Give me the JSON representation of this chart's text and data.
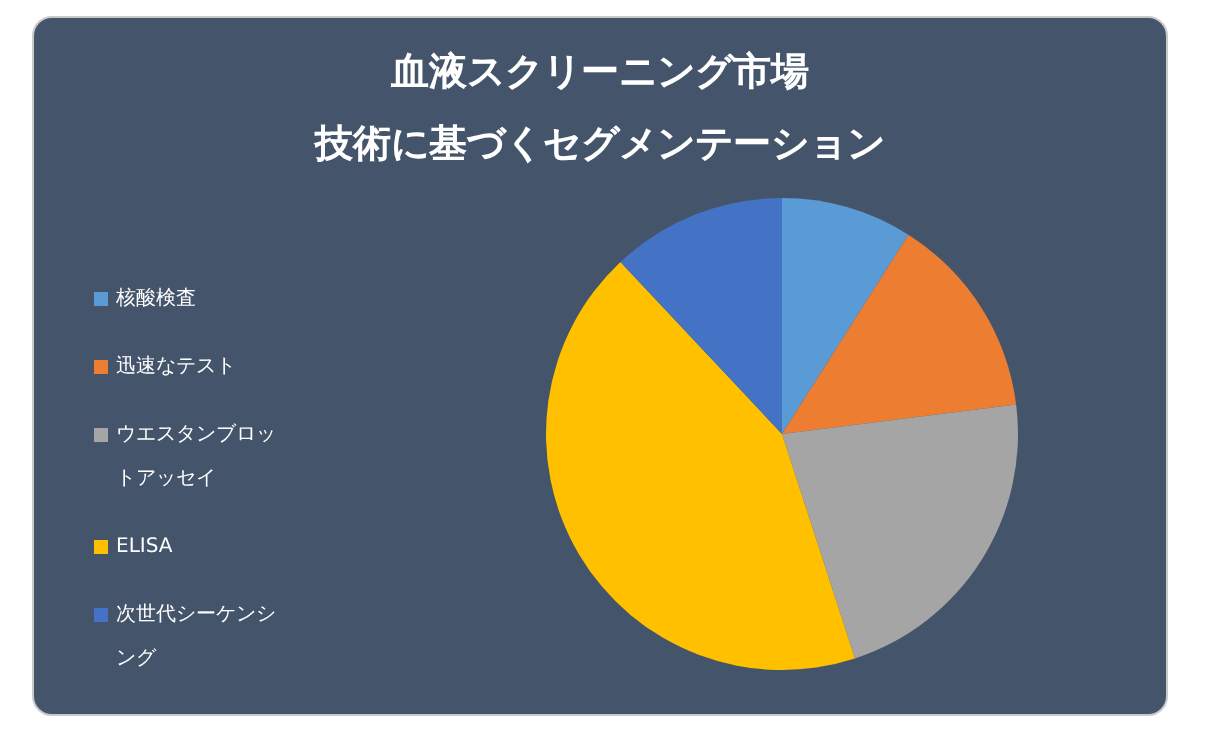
{
  "chart_data": {
    "type": "pie",
    "title": "血液スクリーニング市場",
    "subtitle": "技術に基づくセグメンテーション",
    "categories": [
      "核酸検査",
      "迅速なテスト",
      "ウエスタンブロットアッセイ",
      "ELISA",
      "次世代シーケンシング"
    ],
    "values": [
      9,
      14,
      22,
      43,
      12
    ],
    "colors": [
      "#5b9bd5",
      "#ed7d31",
      "#a5a5a5",
      "#ffc000",
      "#4472c4"
    ],
    "legend": "left"
  }
}
